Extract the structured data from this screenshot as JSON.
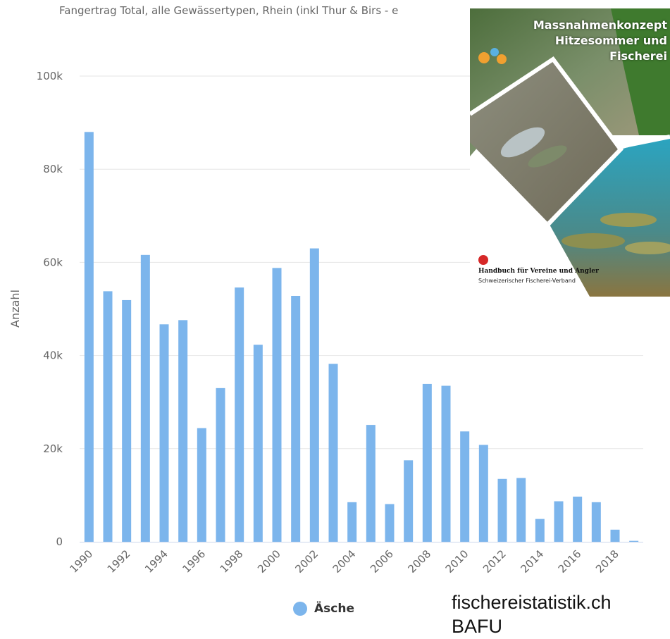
{
  "chart_data": {
    "type": "bar",
    "title": "Fangertrag Total, alle Gewässertypen, Rhein (inkl Thur & Birs - e",
    "ylabel": "Anzahl",
    "xlabel": "",
    "ylim": [
      0,
      100000
    ],
    "yticks": [
      "0",
      "20k",
      "40k",
      "60k",
      "80k",
      "100k"
    ],
    "yticks_values": [
      0,
      20000,
      40000,
      60000,
      80000,
      100000
    ],
    "x_tick_labels": [
      "1990",
      "1992",
      "1994",
      "1996",
      "1998",
      "2000",
      "2002",
      "2004",
      "2006",
      "2008",
      "2010",
      "2012",
      "2014",
      "2016",
      "2018"
    ],
    "categories": [
      1990,
      1991,
      1992,
      1993,
      1994,
      1995,
      1996,
      1997,
      1998,
      1999,
      2000,
      2001,
      2002,
      2003,
      2004,
      2005,
      2006,
      2007,
      2008,
      2009,
      2010,
      2011,
      2012,
      2013,
      2014,
      2015,
      2016,
      2017,
      2018,
      2019
    ],
    "series": [
      {
        "name": "Äsche",
        "color": "#7cb5ec",
        "values": [
          88000,
          53800,
          51900,
          61600,
          46700,
          47600,
          24400,
          33000,
          54600,
          42300,
          58800,
          52800,
          63000,
          38200,
          8500,
          25100,
          8100,
          17500,
          33900,
          33500,
          23700,
          20800,
          13500,
          13700,
          4900,
          8700,
          9700,
          8500,
          2600,
          200
        ]
      }
    ],
    "grid": true,
    "legend_position": "bottom-center"
  },
  "source_lines": [
    "fischereistatistik.ch",
    "BAFU"
  ],
  "cover": {
    "title_lines": [
      "Massnahmenkonzept",
      "Hitzesommer und",
      "Fischerei"
    ],
    "subtitle": "Handbuch für Vereine und Angler",
    "publisher": "Schweizerischer Fischerei-Verband"
  }
}
